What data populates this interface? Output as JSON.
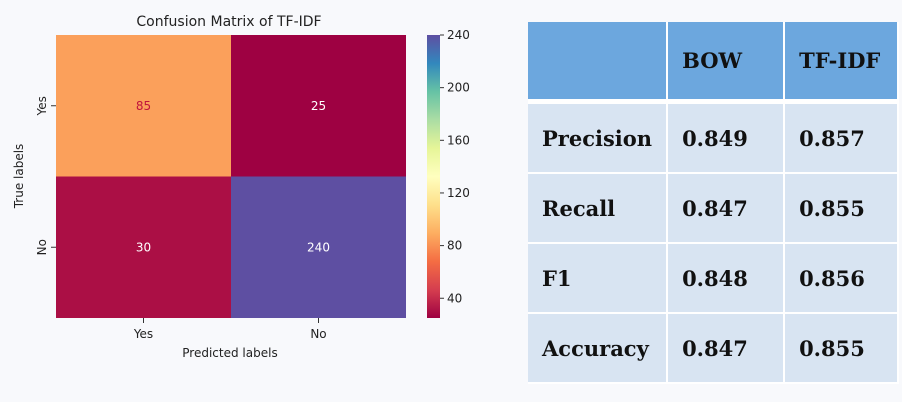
{
  "chart_data": [
    {
      "type": "heatmap",
      "title": "Confusion Matrix of TF-IDF",
      "xlabel": "Predicted labels",
      "ylabel": "True labels",
      "x_categories": [
        "Yes",
        "No"
      ],
      "y_categories": [
        "Yes",
        "No"
      ],
      "values": [
        [
          85,
          25
        ],
        [
          30,
          240
        ]
      ],
      "colorbar": {
        "min": 25,
        "max": 240,
        "ticks": [
          40,
          80,
          120,
          160,
          200,
          240
        ],
        "colormap": "Spectral",
        "colors": [
          "#9e0142",
          "#d53e4f",
          "#f46d43",
          "#fdae61",
          "#fee08b",
          "#ffffbf",
          "#e6f598",
          "#abdda4",
          "#66c2a5",
          "#3288bd",
          "#5e4fa2"
        ]
      },
      "grid": false
    },
    {
      "type": "table",
      "columns": [
        "",
        "BOW",
        "TF-IDF"
      ],
      "rows": [
        {
          "label": "Precision",
          "values": [
            "0.849",
            "0.857"
          ]
        },
        {
          "label": "Recall",
          "values": [
            "0.847",
            "0.855"
          ]
        },
        {
          "label": "F1",
          "values": [
            "0.848",
            "0.856"
          ]
        },
        {
          "label": "Accuracy",
          "values": [
            "0.847",
            "0.855"
          ]
        }
      ],
      "colors": {
        "header": "#6ca7de",
        "body": "#d8e4f2"
      }
    }
  ]
}
